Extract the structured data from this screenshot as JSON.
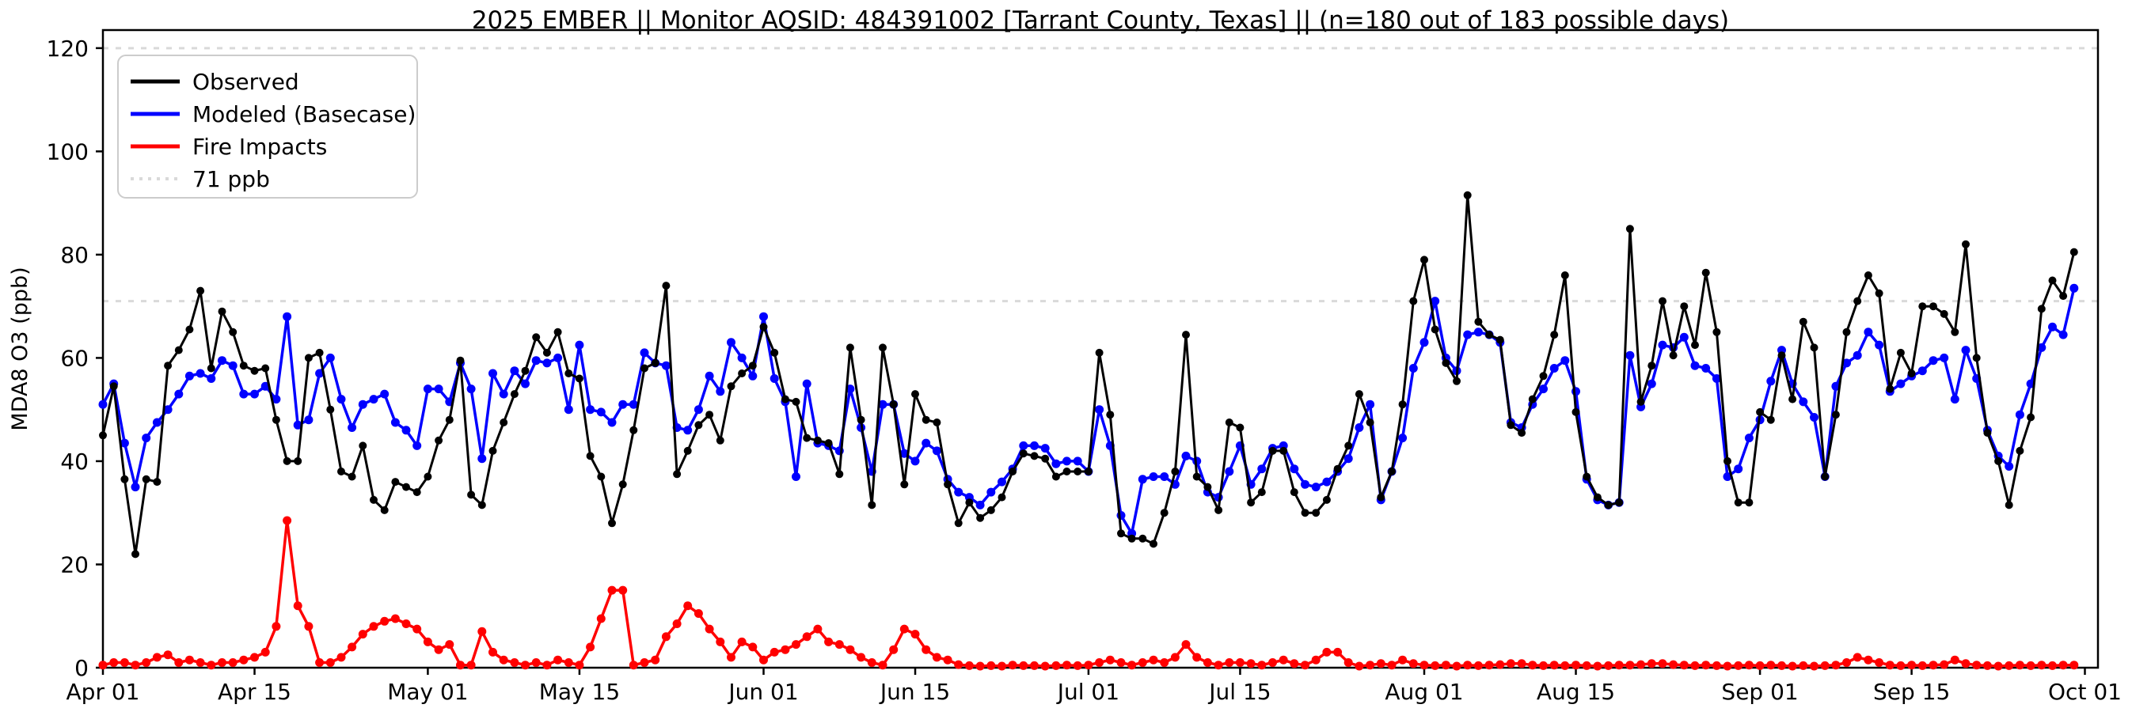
{
  "title": "2025 EMBER || Monitor AQSID: 484391002 [Tarrant County, Texas] || (n=180 out of 183 possible days)",
  "axes": {
    "ylabel": "MDA8 O3 (ppb)",
    "yticks": [
      0,
      20,
      40,
      60,
      80,
      100,
      120
    ],
    "ylim": [
      0,
      123.5
    ],
    "xtick_labels": [
      "Apr 01",
      "Apr 15",
      "May 01",
      "May 15",
      "Jun 01",
      "Jun 15",
      "Jul 01",
      "Jul 15",
      "Aug 01",
      "Aug 15",
      "Sep 01",
      "Sep 15",
      "Oct 01"
    ],
    "xtick_days": [
      0,
      14,
      30,
      44,
      61,
      75,
      91,
      105,
      122,
      136,
      153,
      167,
      183
    ]
  },
  "legend": [
    {
      "label": "Observed",
      "color": "#000000",
      "style": "solid"
    },
    {
      "label": "Modeled (Basecase)",
      "color": "#0000ff",
      "style": "solid"
    },
    {
      "label": "Fire Impacts",
      "color": "#ff0000",
      "style": "solid"
    },
    {
      "label": "71 ppb",
      "color": "#d9d9d9",
      "style": "dotted"
    }
  ],
  "colors": {
    "observed": "#000000",
    "modeled": "#0000ff",
    "fire": "#ff0000",
    "threshold": "#d9d9d9",
    "spine": "#000000"
  },
  "chart_data": {
    "type": "line",
    "title": "2025 EMBER || Monitor AQSID: 484391002 [Tarrant County, Texas] || (n=180 out of 183 possible days)",
    "xlabel": "",
    "ylabel": "MDA8 O3 (ppb)",
    "ylim": [
      0,
      123.5
    ],
    "grid": false,
    "legend_position": "upper-left",
    "threshold_line": {
      "label": "71 ppb",
      "value": 71
    },
    "top_dotted_value": 120,
    "x": {
      "start": "Apr 01",
      "end": "Sep 30",
      "n_days": 183,
      "unit": "daily"
    },
    "series": [
      {
        "name": "Observed",
        "color": "#000000",
        "values": [
          45,
          54.5,
          36.5,
          22,
          36.5,
          36,
          58.5,
          61.5,
          65.5,
          73,
          58,
          69,
          65,
          58.5,
          57.5,
          58,
          48,
          40,
          40,
          60,
          61,
          50,
          38,
          37,
          43,
          32.5,
          30.5,
          36,
          35,
          34,
          37,
          44,
          48,
          59.5,
          33.5,
          31.5,
          42,
          47.5,
          53,
          57.5,
          64,
          61,
          65,
          57,
          56,
          41,
          37,
          28,
          35.5,
          46,
          58,
          59,
          74,
          37.5,
          42,
          47,
          49,
          44,
          54.5,
          57,
          58.5,
          66,
          61,
          52,
          51.5,
          44.5,
          44,
          43.5,
          37.5,
          62,
          48,
          31.5,
          62,
          51,
          35.5,
          53,
          48,
          47.5,
          35.5,
          28,
          32,
          29,
          30.5,
          33,
          38,
          41.5,
          41,
          40.5,
          37,
          38,
          38,
          38,
          61,
          49,
          26,
          25,
          25,
          24,
          30,
          38,
          64.5,
          37,
          35,
          30.5,
          47.5,
          46.5,
          32,
          34,
          42,
          42,
          34,
          30,
          30,
          32.5,
          38.5,
          43,
          53,
          47.5,
          33,
          38,
          51,
          71,
          79,
          65.5,
          59,
          55.5,
          91.5,
          67,
          64.5,
          63.5,
          47,
          45.5,
          52,
          56.5,
          64.5,
          76,
          49.5,
          37,
          33,
          31.5,
          32,
          85,
          51.5,
          58.5,
          71,
          60.5,
          70,
          62.5,
          76.5,
          65,
          40,
          32,
          32,
          49.5,
          48,
          60.5,
          52,
          67,
          62,
          37,
          49,
          65,
          71,
          76,
          72.5,
          54,
          61,
          57,
          70,
          70,
          68.5,
          65,
          82,
          60,
          45.5,
          40,
          31.5,
          42,
          48.5,
          69.5,
          75,
          72,
          80.5
        ]
      },
      {
        "name": "Modeled (Basecase)",
        "color": "#0000ff",
        "values": [
          51,
          55,
          43.5,
          35,
          44.5,
          47.5,
          50,
          53,
          56.5,
          57,
          56,
          59.5,
          58.5,
          53,
          53,
          54.5,
          52,
          68,
          47,
          48,
          57,
          60,
          52,
          46.5,
          51,
          52,
          53,
          47.5,
          46,
          43,
          54,
          54,
          51.5,
          59,
          54,
          40.5,
          57,
          53,
          57.5,
          55,
          59.5,
          59,
          60,
          50,
          62.5,
          50,
          49.5,
          47.5,
          51,
          51,
          61,
          59,
          58.5,
          46.5,
          46,
          50,
          56.5,
          53.5,
          63,
          60,
          56.5,
          68,
          56,
          51.5,
          37,
          55,
          43.5,
          43,
          42,
          54,
          46.5,
          38,
          51,
          51,
          41.5,
          40,
          43.5,
          42,
          36.5,
          34,
          33,
          31.5,
          34,
          36,
          38.5,
          43,
          43,
          42.5,
          39.5,
          40,
          40,
          38,
          50,
          43,
          29.5,
          26,
          36.5,
          37,
          37,
          35.5,
          41,
          40,
          34,
          33,
          38,
          43,
          35.5,
          38.5,
          42.5,
          43,
          38.5,
          35.5,
          35,
          36,
          38,
          40.5,
          46.5,
          51,
          32.5,
          38,
          44.5,
          58,
          63,
          71,
          60,
          57.5,
          64.5,
          65,
          64.5,
          63,
          47.5,
          46.5,
          51,
          54,
          58,
          59.5,
          53.5,
          36.5,
          32.5,
          31.5,
          32,
          60.5,
          50.5,
          55,
          62.5,
          62,
          64,
          58.5,
          58,
          56,
          37,
          38.5,
          44.5,
          48,
          55.5,
          61.5,
          55,
          51.5,
          48.5,
          37,
          54.5,
          59,
          60.5,
          65,
          62.5,
          53.5,
          55,
          56.5,
          57.5,
          59.5,
          60,
          52,
          61.5,
          56,
          46,
          41,
          39,
          49,
          55,
          62,
          66,
          64.5,
          73.5
        ]
      },
      {
        "name": "Fire Impacts",
        "color": "#ff0000",
        "values": [
          0.5,
          1,
          1,
          0.5,
          1,
          2,
          2.5,
          1,
          1.5,
          1,
          0.5,
          1,
          1,
          1.5,
          2,
          3,
          8,
          28.5,
          12,
          8,
          1,
          1,
          2,
          4,
          6.5,
          8,
          9,
          9.5,
          8.5,
          7.5,
          5,
          3.5,
          4.5,
          0.5,
          0.5,
          7,
          3,
          1.5,
          1,
          0.5,
          1,
          0.5,
          1.5,
          1,
          0.5,
          4,
          9.5,
          15,
          15,
          0.5,
          1,
          1.5,
          6,
          8.5,
          12,
          10.5,
          7.5,
          5,
          2,
          5,
          4,
          1.5,
          3,
          3.5,
          4.5,
          6,
          7.5,
          5,
          4.5,
          3.5,
          2,
          1,
          0.5,
          3.5,
          7.5,
          6.5,
          3.5,
          2,
          1.5,
          0.6,
          0.4,
          0.3,
          0.4,
          0.3,
          0.5,
          0.4,
          0.4,
          0.3,
          0.4,
          0.5,
          0.4,
          0.5,
          1,
          1.5,
          1,
          0.5,
          1,
          1.5,
          1,
          2,
          4.5,
          2,
          1,
          0.5,
          1,
          1,
          0.8,
          0.5,
          1,
          1.5,
          0.8,
          0.5,
          1.5,
          3,
          3,
          1,
          0.3,
          0.5,
          0.8,
          0.5,
          1.5,
          0.8,
          0.5,
          0.4,
          0.5,
          0.3,
          0.5,
          0.4,
          0.5,
          0.6,
          0.8,
          0.8,
          0.5,
          0.4,
          0.5,
          0.4,
          0.5,
          0.4,
          0.3,
          0.4,
          0.5,
          0.5,
          0.6,
          0.8,
          0.8,
          0.6,
          0.5,
          0.4,
          0.5,
          0.4,
          0.3,
          0.4,
          0.5,
          0.4,
          0.5,
          0.4,
          0.3,
          0.4,
          0.3,
          0.4,
          0.5,
          1,
          2,
          1.5,
          1,
          0.5,
          0.4,
          0.5,
          0.4,
          0.5,
          0.6,
          1.5,
          0.8,
          0.5,
          0.4,
          0.3,
          0.4,
          0.5,
          0.4,
          0.5,
          0.4,
          0.5,
          0.5
        ]
      }
    ]
  }
}
